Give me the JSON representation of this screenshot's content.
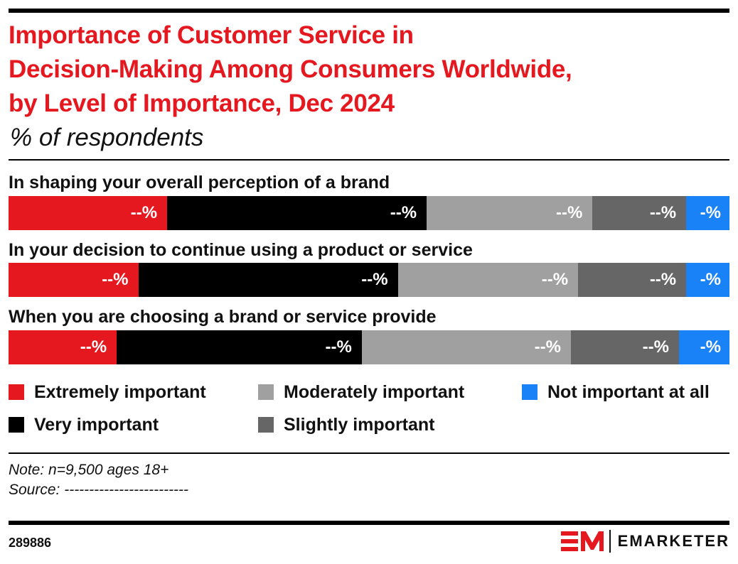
{
  "header": {
    "title_lines": [
      "Importance of Customer Service in",
      "Decision-Making Among Consumers Worldwide,",
      "by Level of Importance, Dec 2024"
    ],
    "subtitle": "% of respondents"
  },
  "chart_data": {
    "type": "bar",
    "orientation": "horizontal",
    "stacked": true,
    "grid": false,
    "categories": [
      "In shaping your overall perception of a brand",
      "In your decision to continue using a product or service",
      "When you are choosing a brand or service provide"
    ],
    "series": [
      {
        "name": "Extremely important",
        "color": "#e5171f",
        "values": [
          22,
          18,
          15
        ],
        "labels": [
          "--%",
          "--%",
          "--%"
        ]
      },
      {
        "name": "Very important",
        "color": "#000000",
        "values": [
          36,
          36,
          34
        ],
        "labels": [
          "--%",
          "--%",
          "--%"
        ]
      },
      {
        "name": "Moderately important",
        "color": "#a0a0a0",
        "values": [
          23,
          25,
          29
        ],
        "labels": [
          "--%",
          "--%",
          "--%"
        ]
      },
      {
        "name": "Slightly important",
        "color": "#666666",
        "values": [
          13,
          15,
          15
        ],
        "labels": [
          "--%",
          "--%",
          "--%"
        ]
      },
      {
        "name": "Not important at all",
        "color": "#1a82f7",
        "values": [
          6,
          6,
          7
        ],
        "labels": [
          "-%",
          "-%",
          "-%"
        ]
      }
    ],
    "xlim": [
      0,
      100
    ],
    "legend_position": "bottom"
  },
  "legend": {
    "items": [
      {
        "label": "Extremely important",
        "color": "#e5171f"
      },
      {
        "label": "Very important",
        "color": "#000000"
      },
      {
        "label": "Moderately important",
        "color": "#a0a0a0"
      },
      {
        "label": "Slightly important",
        "color": "#666666"
      },
      {
        "label": "Not important at all",
        "color": "#1a82f7"
      }
    ]
  },
  "footer": {
    "note": "Note: n=9,500 ages 18+",
    "source": "Source: -------------------------",
    "chart_id": "289886",
    "brand": "EMARKETER"
  }
}
